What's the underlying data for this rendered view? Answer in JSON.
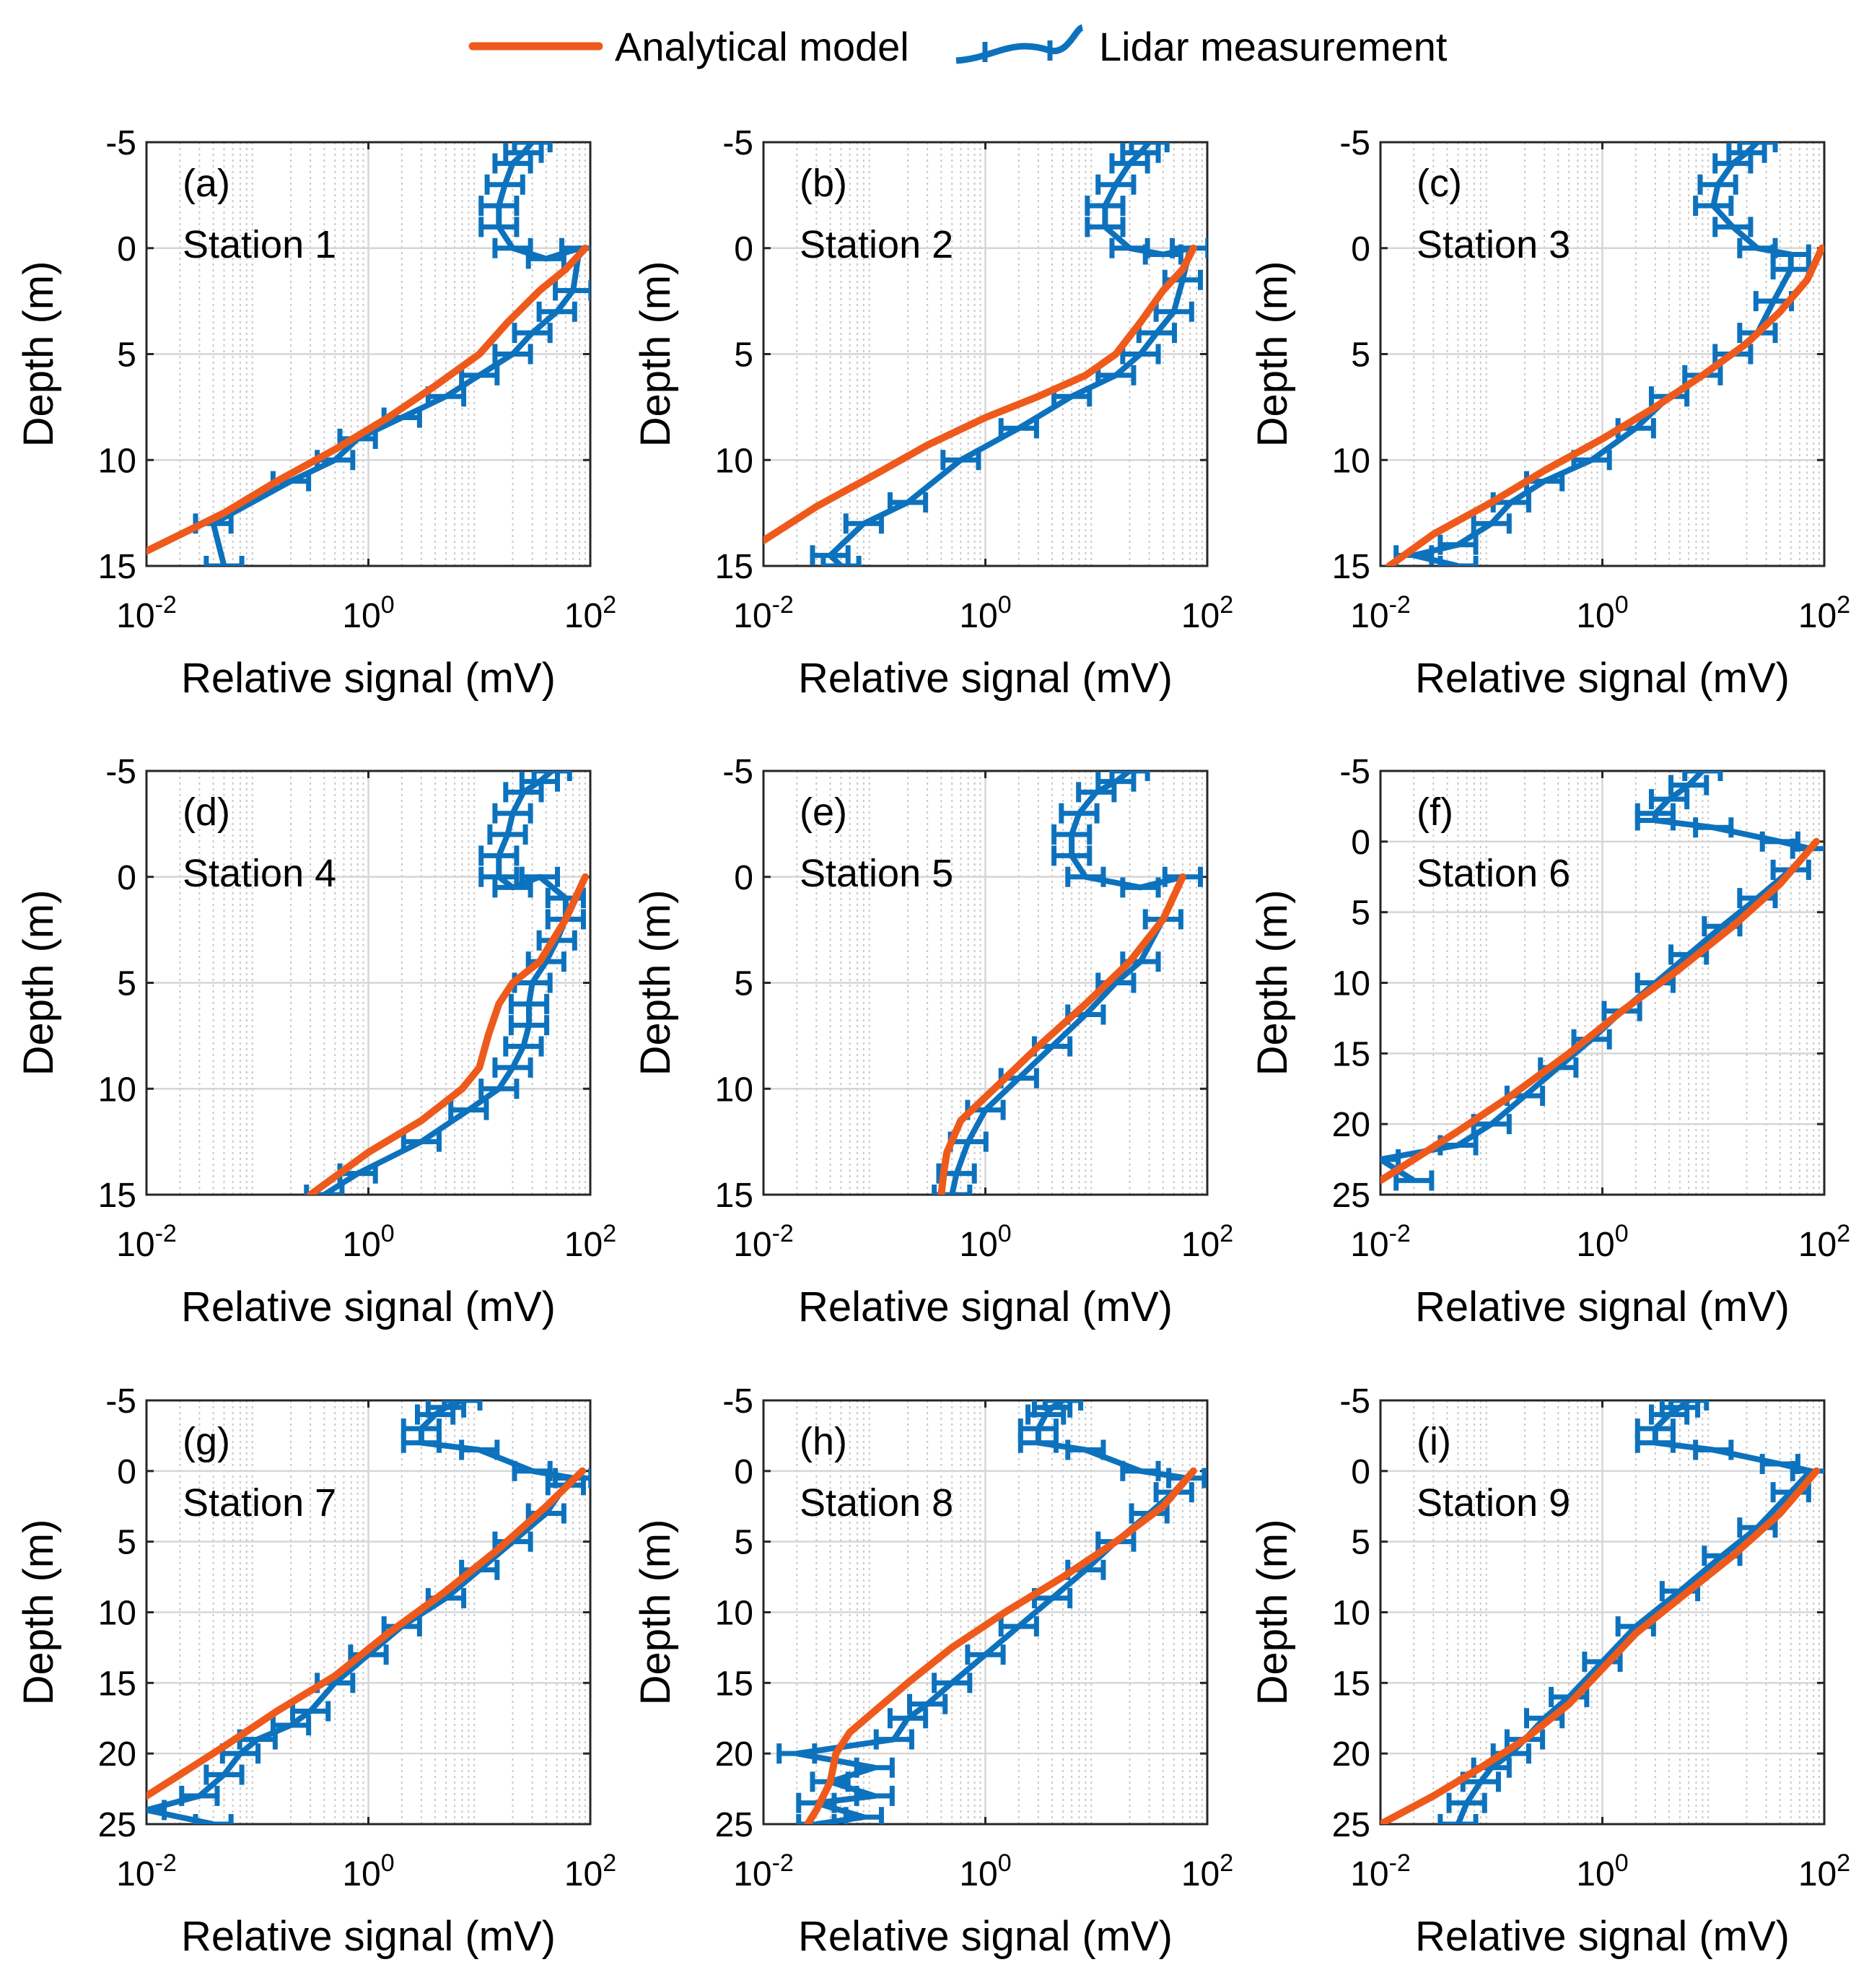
{
  "colors": {
    "model": "#EE5A1C",
    "lidar": "#0D72BD",
    "axis": "#262626"
  },
  "legend": {
    "model_label": "Analytical model",
    "lidar_label": "Lidar measurement"
  },
  "chart_data": [
    {
      "type": "line",
      "panel_tag": "(a)",
      "title": "Station 1",
      "xlabel": "Relative signal (mV)",
      "ylabel": "Depth (m)",
      "xscale": "log",
      "xlim": [
        0.01,
        100
      ],
      "ylim": [
        -5,
        15
      ],
      "y_reversed": true,
      "yticks": [
        "-5",
        "0",
        "5",
        "10",
        "15"
      ],
      "series": [
        {
          "name": "Analytical model",
          "x": [
            90,
            60,
            35,
            18,
            10,
            4,
            1.5,
            0.5,
            0.15,
            0.05,
            0.01
          ],
          "y": [
            0,
            1,
            2,
            3.5,
            5,
            6.5,
            8,
            9.5,
            11,
            12.5,
            14.3
          ]
        },
        {
          "name": "Lidar measurement",
          "x": [
            30,
            25,
            20,
            17,
            15,
            15,
            20,
            40,
            80,
            70,
            50,
            30,
            20,
            10,
            5,
            2,
            0.8,
            0.5,
            0.2,
            0.04,
            0.05
          ],
          "y": [
            -5,
            -4.5,
            -4,
            -3,
            -2,
            -1,
            0,
            0.5,
            0,
            2,
            3,
            4,
            5,
            6,
            7,
            8,
            9,
            10,
            11,
            13,
            15
          ]
        }
      ]
    },
    {
      "type": "line",
      "panel_tag": "(b)",
      "title": "Station 2",
      "xlabel": "Relative signal (mV)",
      "ylabel": "Depth (m)",
      "xscale": "log",
      "xlim": [
        0.01,
        100
      ],
      "ylim": [
        -5,
        15
      ],
      "y_reversed": true,
      "yticks": [
        "-5",
        "0",
        "5",
        "10",
        "15"
      ],
      "series": [
        {
          "name": "Analytical model",
          "x": [
            75,
            60,
            40,
            25,
            15,
            8,
            3,
            1,
            0.3,
            0.1,
            0.03,
            0.01
          ],
          "y": [
            0,
            1,
            2,
            3.5,
            5,
            6,
            7,
            8,
            9.3,
            10.7,
            12.2,
            13.8
          ]
        },
        {
          "name": "Lidar measurement",
          "x": [
            30,
            25,
            20,
            15,
            12,
            12,
            20,
            40,
            70,
            60,
            50,
            35,
            25,
            15,
            6,
            2,
            0.6,
            0.2,
            0.08,
            0.04,
            0.05
          ],
          "y": [
            -5,
            -4.5,
            -4,
            -3,
            -2,
            -1,
            0,
            0.3,
            0,
            1.5,
            3,
            4,
            5,
            6,
            7,
            8.5,
            10,
            12,
            13,
            14.5,
            15
          ]
        }
      ]
    },
    {
      "type": "line",
      "panel_tag": "(c)",
      "title": "Station 3",
      "xlabel": "Relative signal (mV)",
      "ylabel": "Depth (m)",
      "xscale": "log",
      "xlim": [
        0.01,
        100
      ],
      "ylim": [
        -5,
        15
      ],
      "y_reversed": true,
      "yticks": [
        "-5",
        "0",
        "5",
        "10",
        "15"
      ],
      "series": [
        {
          "name": "Analytical model",
          "x": [
            95,
            70,
            40,
            20,
            8,
            3,
            1,
            0.3,
            0.1,
            0.03,
            0.012
          ],
          "y": [
            0,
            1.5,
            3,
            4.5,
            6,
            7.5,
            9,
            10.5,
            12,
            13.5,
            15
          ]
        },
        {
          "name": "Lidar measurement",
          "x": [
            25,
            20,
            15,
            11,
            10,
            15,
            25,
            50,
            50,
            35,
            25,
            15,
            8,
            4,
            2,
            0.8,
            0.3,
            0.15,
            0.1,
            0.05,
            0.02,
            0.05
          ],
          "y": [
            -5,
            -4.5,
            -4,
            -3,
            -2,
            -1,
            0,
            0.3,
            1,
            2.5,
            4,
            5,
            6,
            7,
            8.5,
            10,
            11,
            12,
            13,
            14,
            14.5,
            15
          ]
        }
      ]
    },
    {
      "type": "line",
      "panel_tag": "(d)",
      "title": "Station 4",
      "xlabel": "Relative signal (mV)",
      "ylabel": "Depth (m)",
      "xscale": "log",
      "xlim": [
        0.01,
        100
      ],
      "ylim": [
        -5,
        15
      ],
      "y_reversed": true,
      "yticks": [
        "-5",
        "0",
        "5",
        "10",
        "15"
      ],
      "series": [
        {
          "name": "Analytical model",
          "x": [
            90,
            60,
            35,
            20,
            15,
            12,
            10,
            7,
            3,
            1,
            0.3
          ],
          "y": [
            0,
            2,
            4,
            5,
            6,
            7.5,
            9,
            10,
            11.5,
            13,
            15
          ]
        },
        {
          "name": "Lidar measurement",
          "x": [
            45,
            35,
            25,
            20,
            18,
            15,
            15,
            20,
            35,
            60,
            60,
            50,
            40,
            30,
            28,
            28,
            25,
            20,
            15,
            8,
            3,
            0.8,
            0.4
          ],
          "y": [
            -5,
            -4.5,
            -4,
            -3,
            -2,
            -1,
            0,
            0.5,
            0,
            1,
            2,
            3,
            4,
            5,
            6,
            7,
            8,
            9,
            10,
            11,
            12.5,
            14,
            15
          ]
        }
      ]
    },
    {
      "type": "line",
      "panel_tag": "(e)",
      "title": "Station 5",
      "xlabel": "Relative signal (mV)",
      "ylabel": "Depth (m)",
      "xscale": "log",
      "xlim": [
        0.01,
        100
      ],
      "ylim": [
        -5,
        15
      ],
      "y_reversed": true,
      "yticks": [
        "-5",
        "0",
        "5",
        "10",
        "15"
      ],
      "series": [
        {
          "name": "Analytical model",
          "x": [
            60,
            40,
            20,
            8,
            3,
            1.2,
            0.6,
            0.45,
            0.42,
            0.4
          ],
          "y": [
            0,
            2,
            4,
            6,
            8,
            10,
            11.5,
            13,
            14,
            15
          ]
        },
        {
          "name": "Lidar measurement",
          "x": [
            20,
            15,
            10,
            7,
            6,
            6,
            8,
            25,
            60,
            40,
            25,
            15,
            8,
            4,
            2,
            1,
            0.7,
            0.55,
            0.5
          ],
          "y": [
            -5,
            -4.5,
            -4,
            -3,
            -2,
            -1,
            0,
            0.5,
            0,
            2,
            4,
            5,
            6.5,
            8,
            9.5,
            11,
            12.5,
            14,
            15
          ]
        }
      ]
    },
    {
      "type": "line",
      "panel_tag": "(f)",
      "title": "Station 6",
      "xlabel": "Relative signal (mV)",
      "ylabel": "Depth (m)",
      "xscale": "log",
      "xlim": [
        0.01,
        100
      ],
      "ylim": [
        -5,
        25
      ],
      "y_reversed": true,
      "yticks": [
        "-5",
        "0",
        "5",
        "10",
        "15",
        "20",
        "25"
      ],
      "series": [
        {
          "name": "Analytical model",
          "x": [
            85,
            40,
            15,
            5,
            1.5,
            0.5,
            0.15,
            0.05,
            0.02,
            0.01
          ],
          "y": [
            0,
            3,
            6,
            9,
            12,
            15,
            18,
            20.5,
            22.5,
            24
          ]
        },
        {
          "name": "Lidar measurement",
          "x": [
            8,
            6,
            4,
            3,
            3,
            10,
            40,
            75,
            50,
            25,
            12,
            6,
            3,
            1.5,
            0.8,
            0.4,
            0.2,
            0.1,
            0.05,
            0.01,
            0.02
          ],
          "y": [
            -5,
            -4,
            -3,
            -2,
            -1.5,
            -1,
            0,
            0.5,
            2,
            4,
            6,
            8,
            10,
            12,
            14,
            16,
            18,
            20,
            21.5,
            22.5,
            24
          ]
        }
      ]
    },
    {
      "type": "line",
      "panel_tag": "(g)",
      "title": "Station 7",
      "xlabel": "Relative signal (mV)",
      "ylabel": "Depth (m)",
      "xscale": "log",
      "xlim": [
        0.01,
        100
      ],
      "ylim": [
        -5,
        25
      ],
      "y_reversed": true,
      "yticks": [
        "-5",
        "0",
        "5",
        "10",
        "15",
        "20",
        "25"
      ],
      "series": [
        {
          "name": "Analytical model",
          "x": [
            85,
            40,
            15,
            5,
            1.5,
            0.5,
            0.15,
            0.05,
            0.02,
            0.01
          ],
          "y": [
            0,
            2.5,
            5.5,
            8.5,
            11.5,
            14.5,
            17,
            19.5,
            21.5,
            23
          ]
        },
        {
          "name": "Lidar measurement",
          "x": [
            7,
            5,
            4,
            3,
            3,
            10,
            30,
            70,
            60,
            40,
            20,
            10,
            5,
            2,
            1,
            0.5,
            0.3,
            0.2,
            0.1,
            0.07,
            0.05,
            0.03,
            0.01,
            0.04
          ],
          "y": [
            -5,
            -4.5,
            -4,
            -3,
            -2,
            -1.5,
            0,
            0.5,
            1,
            3,
            5,
            7,
            9,
            11,
            13,
            15,
            17,
            18,
            19,
            20,
            21.5,
            23,
            24,
            25
          ]
        }
      ]
    },
    {
      "type": "line",
      "panel_tag": "(h)",
      "title": "Station 8",
      "xlabel": "Relative signal (mV)",
      "ylabel": "Depth (m)",
      "xscale": "log",
      "xlim": [
        0.01,
        100
      ],
      "ylim": [
        -5,
        25
      ],
      "y_reversed": true,
      "yticks": [
        "-5",
        "0",
        "5",
        "10",
        "15",
        "20",
        "25"
      ],
      "series": [
        {
          "name": "Analytical model",
          "x": [
            75,
            40,
            15,
            5,
            1.5,
            0.5,
            0.2,
            0.1,
            0.06,
            0.045,
            0.04,
            0.03,
            0.025
          ],
          "y": [
            0,
            2.5,
            5,
            7.5,
            10,
            12.5,
            15,
            17,
            18.5,
            20,
            22,
            24,
            25
          ]
        },
        {
          "name": "Lidar measurement",
          "x": [
            5,
            4,
            3.5,
            3,
            3,
            8,
            25,
            65,
            50,
            30,
            15,
            8,
            4,
            2,
            1,
            0.5,
            0.3,
            0.2,
            0.15,
            0.02,
            0.1,
            0.04,
            0.1,
            0.03,
            0.08,
            0.03
          ],
          "y": [
            -5,
            -4.5,
            -4,
            -3,
            -2,
            -1.5,
            0,
            0.5,
            1.5,
            3,
            5,
            7,
            9,
            11,
            13,
            15,
            16.5,
            17.5,
            19,
            20,
            21,
            22,
            23,
            23.5,
            24.5,
            25
          ]
        }
      ]
    },
    {
      "type": "line",
      "panel_tag": "(i)",
      "title": "Station 9",
      "xlabel": "Relative signal (mV)",
      "ylabel": "Depth (m)",
      "xscale": "log",
      "xlim": [
        0.01,
        100
      ],
      "ylim": [
        -5,
        25
      ],
      "y_reversed": true,
      "yticks": [
        "-5",
        "0",
        "5",
        "10",
        "15",
        "20",
        "25"
      ],
      "series": [
        {
          "name": "Analytical model",
          "x": [
            85,
            40,
            15,
            5,
            2,
            1,
            0.5,
            0.2,
            0.08,
            0.03,
            0.01
          ],
          "y": [
            0,
            3,
            6,
            9,
            11.5,
            14,
            16.5,
            19,
            21,
            23,
            25
          ]
        },
        {
          "name": "Lidar measurement",
          "x": [
            6,
            5,
            4,
            3,
            3,
            10,
            40,
            75,
            50,
            25,
            12,
            5,
            2,
            1,
            0.5,
            0.3,
            0.2,
            0.15,
            0.1,
            0.08,
            0.06,
            0.05
          ],
          "y": [
            -5,
            -4.5,
            -4,
            -3,
            -2,
            -1.5,
            -0.5,
            0,
            1.5,
            4,
            6,
            8.5,
            11,
            13.5,
            16,
            17.5,
            19,
            20,
            21,
            22,
            23.5,
            25
          ]
        }
      ]
    }
  ]
}
